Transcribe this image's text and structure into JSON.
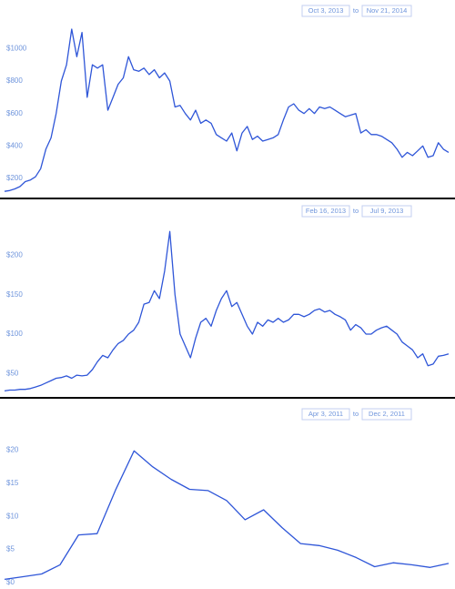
{
  "chart_data": [
    {
      "type": "line",
      "range_start": "Oct 3, 2013",
      "range_join": "to",
      "range_end": "Nov 21, 2014",
      "color": "#2f56d8",
      "grid": false,
      "ylim": [
        110,
        1120
      ],
      "yticks": [
        {
          "value": 200,
          "label": "$200"
        },
        {
          "value": 400,
          "label": "$400"
        },
        {
          "value": 600,
          "label": "$600"
        },
        {
          "value": 800,
          "label": "$800"
        },
        {
          "value": 1000,
          "label": "$1000"
        }
      ],
      "values": [
        120,
        125,
        135,
        150,
        180,
        190,
        210,
        260,
        380,
        450,
        600,
        800,
        900,
        1120,
        950,
        1100,
        700,
        900,
        880,
        900,
        620,
        700,
        780,
        820,
        950,
        870,
        860,
        880,
        840,
        870,
        820,
        850,
        800,
        640,
        650,
        600,
        560,
        620,
        540,
        560,
        540,
        470,
        450,
        430,
        480,
        370,
        480,
        520,
        440,
        460,
        430,
        440,
        450,
        470,
        560,
        640,
        660,
        620,
        600,
        630,
        600,
        640,
        630,
        640,
        620,
        600,
        580,
        590,
        600,
        480,
        500,
        470,
        470,
        460,
        440,
        420,
        380,
        330,
        360,
        340,
        370,
        400,
        330,
        340,
        420,
        380,
        360
      ]
    },
    {
      "type": "line",
      "range_start": "Feb 16, 2013",
      "range_join": "to",
      "range_end": "Jul 9, 2013",
      "color": "#2f56d8",
      "grid": false,
      "ylim": [
        25,
        235
      ],
      "yticks": [
        {
          "value": 50,
          "label": "$50"
        },
        {
          "value": 100,
          "label": "$100"
        },
        {
          "value": 150,
          "label": "$150"
        },
        {
          "value": 200,
          "label": "$200"
        }
      ],
      "values": [
        28,
        29,
        29,
        30,
        30,
        31,
        33,
        35,
        38,
        41,
        44,
        45,
        47,
        44,
        48,
        47,
        48,
        55,
        65,
        73,
        70,
        80,
        88,
        92,
        100,
        105,
        115,
        138,
        140,
        155,
        145,
        180,
        230,
        150,
        100,
        85,
        70,
        95,
        115,
        120,
        110,
        130,
        145,
        155,
        135,
        140,
        125,
        110,
        100,
        115,
        110,
        118,
        115,
        120,
        115,
        118,
        125,
        125,
        122,
        125,
        130,
        132,
        128,
        130,
        125,
        122,
        118,
        105,
        112,
        108,
        100,
        100,
        105,
        108,
        110,
        105,
        100,
        90,
        85,
        80,
        70,
        75,
        60,
        62,
        72,
        73,
        75
      ]
    },
    {
      "type": "line",
      "range_start": "Apr 3, 2011",
      "range_join": "to",
      "range_end": "Dec 2, 2011",
      "color": "#2f56d8",
      "grid": false,
      "ylim": [
        0,
        22
      ],
      "yticks": [
        {
          "value": 0,
          "label": "$0"
        },
        {
          "value": 5,
          "label": "$5"
        },
        {
          "value": 10,
          "label": "$10"
        },
        {
          "value": 15,
          "label": "$15"
        },
        {
          "value": 20,
          "label": "$20"
        }
      ],
      "values": [
        0.5,
        0.9,
        1.3,
        2.7,
        7.2,
        7.4,
        14,
        19.9,
        17.5,
        15.6,
        14.1,
        13.9,
        12.4,
        9.5,
        11,
        8.3,
        5.9,
        5.6,
        4.9,
        3.8,
        2.4,
        3,
        2.7,
        2.3,
        2.9
      ]
    }
  ]
}
